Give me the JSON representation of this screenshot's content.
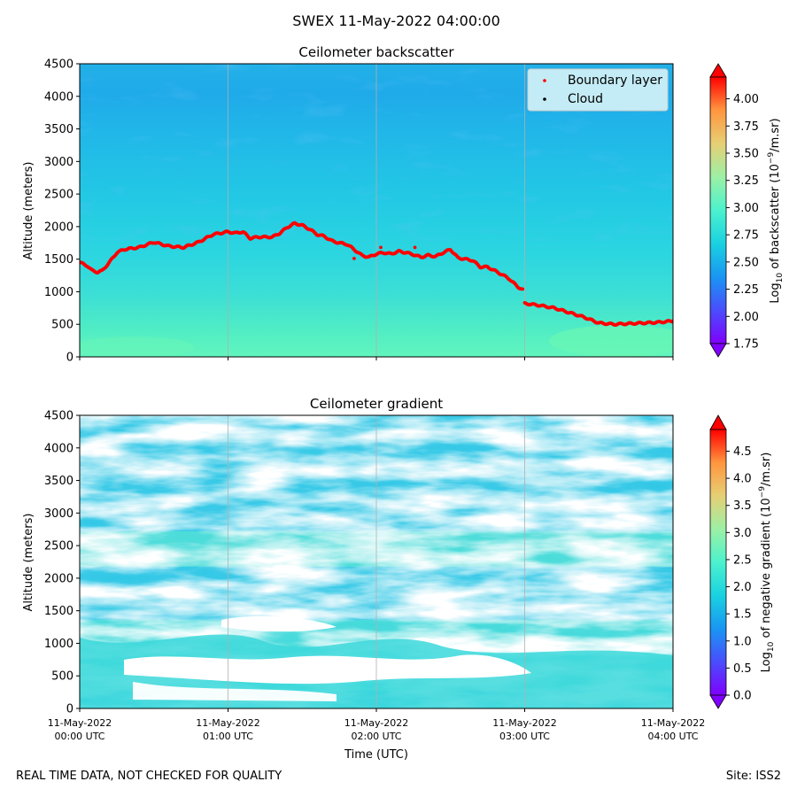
{
  "figure": {
    "suptitle": "SWEX 11-May-2022 04:00:00",
    "footer_left": "REAL TIME DATA, NOT CHECKED FOR QUALITY",
    "footer_right": "Site: ISS2"
  },
  "chart_data": [
    {
      "type": "heatmap",
      "title": "Ceilometer backscatter",
      "ylabel": "Altitude (meters)",
      "ylim": [
        0,
        4500
      ],
      "yticks": [
        0,
        500,
        1000,
        1500,
        2000,
        2500,
        3000,
        3500,
        4000,
        4500
      ],
      "xlim_hours": [
        0,
        4
      ],
      "xgrid_hours": [
        1,
        2,
        3
      ],
      "colorbar": {
        "label": "Log10 of backscatter (10^-9/m.sr)",
        "label_prefix": "Log",
        "label_sub": "10",
        "label_mid": " of backscatter (10",
        "label_sup": "−9",
        "label_suffix": "/m.sr)",
        "vmin": 1.75,
        "vmax": 4.2,
        "extend": "both",
        "ticks": [
          "1.75",
          "2.00",
          "2.25",
          "2.50",
          "2.75",
          "3.00",
          "3.25",
          "3.50",
          "3.75",
          "4.00"
        ]
      },
      "legend": {
        "position": "top-right",
        "entries": [
          {
            "label": "Boundary layer",
            "color": "#ff0000"
          },
          {
            "label": "Cloud",
            "color": "#000000"
          }
        ]
      },
      "series": [
        {
          "name": "Boundary layer",
          "x_hours": [
            0.0,
            0.05,
            0.08,
            0.12,
            0.15,
            0.2,
            0.25,
            0.3,
            0.4,
            0.5,
            0.6,
            0.7,
            0.8,
            0.9,
            1.0,
            1.05,
            1.1,
            1.15,
            1.2,
            1.3,
            1.35,
            1.4,
            1.45,
            1.5,
            1.55,
            1.6,
            1.65,
            1.7,
            1.75,
            1.8,
            1.85,
            1.9,
            1.95,
            2.0,
            2.05,
            2.1,
            2.15,
            2.2,
            2.25,
            2.3,
            2.35,
            2.4,
            2.45,
            2.5,
            2.55,
            2.6,
            2.65,
            2.7,
            2.75,
            2.8,
            2.85,
            2.9,
            2.95,
            2.99,
            3.0,
            3.1,
            3.2,
            3.3,
            3.4,
            3.5,
            3.6,
            3.7,
            3.8,
            3.9,
            4.0
          ],
          "y_meters": [
            1450,
            1400,
            1330,
            1300,
            1320,
            1450,
            1600,
            1650,
            1680,
            1760,
            1700,
            1680,
            1760,
            1880,
            1920,
            1900,
            1920,
            1820,
            1840,
            1840,
            1900,
            1990,
            2050,
            2020,
            1960,
            1880,
            1850,
            1780,
            1750,
            1730,
            1650,
            1560,
            1530,
            1580,
            1600,
            1580,
            1620,
            1600,
            1570,
            1530,
            1560,
            1540,
            1600,
            1650,
            1520,
            1500,
            1480,
            1380,
            1380,
            1320,
            1260,
            1190,
            1080,
            1030,
            820,
            790,
            750,
            680,
            610,
            520,
            500,
            510,
            520,
            530,
            550
          ]
        },
        {
          "name": "Boundary layer (isolated points)",
          "x_hours": [
            1.85,
            2.03,
            2.26
          ],
          "y_meters": [
            1510,
            1680,
            1680
          ]
        }
      ]
    },
    {
      "type": "heatmap",
      "title": "Ceilometer gradient",
      "ylabel": "Altitude (meters)",
      "xlabel": "Time (UTC)",
      "ylim": [
        0,
        4500
      ],
      "yticks": [
        0,
        500,
        1000,
        1500,
        2000,
        2500,
        3000,
        3500,
        4000,
        4500
      ],
      "xlim_hours": [
        0,
        4
      ],
      "xticks": [
        {
          "hour": 0,
          "line1": "11-May-2022",
          "line2": "00:00 UTC"
        },
        {
          "hour": 1,
          "line1": "11-May-2022",
          "line2": "01:00 UTC"
        },
        {
          "hour": 2,
          "line1": "11-May-2022",
          "line2": "02:00 UTC"
        },
        {
          "hour": 3,
          "line1": "11-May-2022",
          "line2": "03:00 UTC"
        },
        {
          "hour": 4,
          "line1": "11-May-2022",
          "line2": "04:00 UTC"
        }
      ],
      "colorbar": {
        "label": "Log10 of negative gradient (10^-9/m.sr)",
        "label_prefix": "Log",
        "label_sub": "10",
        "label_mid": " of negative gradient (10",
        "label_sup": "−9",
        "label_suffix": "/m.sr)",
        "vmin": 0.0,
        "vmax": 4.9,
        "extend": "both",
        "ticks": [
          "0.0",
          "0.5",
          "1.0",
          "1.5",
          "2.0",
          "2.5",
          "3.0",
          "3.5",
          "4.0",
          "4.5"
        ]
      }
    }
  ]
}
